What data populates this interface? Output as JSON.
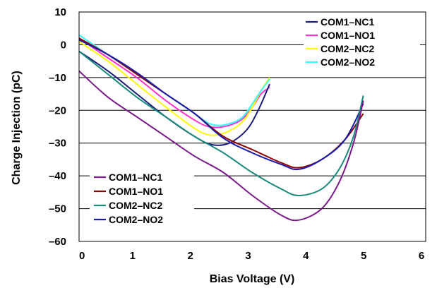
{
  "chart_data": {
    "type": "line",
    "title": "",
    "xlabel": "Bias Voltage (V)",
    "ylabel": "Charge Injection (pC)",
    "xlim": [
      0,
      6
    ],
    "ylim": [
      -60,
      10
    ],
    "x_ticks": [
      "0",
      "1",
      "2",
      "3",
      "4",
      "5",
      "6"
    ],
    "y_ticks": [
      "10",
      "0",
      "–10",
      "–20",
      "–30",
      "–40",
      "–50",
      "–60"
    ],
    "grid": "horizontal",
    "legends": [
      {
        "placement": "top-right",
        "entries": [
          {
            "name": "COM1–NC1",
            "color": "#1a1a7a"
          },
          {
            "name": "COM1–NO1",
            "color": "#ff33cc"
          },
          {
            "name": "COM2–NC2",
            "color": "#ffff00"
          },
          {
            "name": "COM2–NO2",
            "color": "#33ffff"
          }
        ]
      },
      {
        "placement": "bottom-left",
        "entries": [
          {
            "name": "COM1–NC1",
            "color": "#7a1a8a"
          },
          {
            "name": "COM1–NO1",
            "color": "#8b0000"
          },
          {
            "name": "COM2–NC2",
            "color": "#1a8a7a"
          },
          {
            "name": "COM2–NO2",
            "color": "#1a1aaa"
          }
        ]
      }
    ],
    "series": [
      {
        "color": "#ff33cc",
        "x": [
          0,
          0.5,
          1,
          1.5,
          2,
          2.25,
          2.5,
          2.8,
          3.0,
          3.15,
          3.3
        ],
        "y": [
          2,
          -4,
          -10,
          -17,
          -23,
          -25,
          -25,
          -23,
          -19,
          -15,
          -13
        ]
      },
      {
        "color": "#ffff00",
        "x": [
          0,
          0.5,
          1,
          1.5,
          2,
          2.25,
          2.5,
          2.8,
          3.0,
          3.15,
          3.3
        ],
        "y": [
          1,
          -5,
          -12,
          -19,
          -25.5,
          -27.5,
          -27,
          -24,
          -19,
          -14,
          -10
        ]
      },
      {
        "color": "#33ffff",
        "x": [
          0,
          0.5,
          1,
          1.5,
          2,
          2.25,
          2.5,
          2.8,
          3.0,
          3.15,
          3.3
        ],
        "y": [
          3,
          -3,
          -9,
          -15,
          -21,
          -24,
          -24.5,
          -22.5,
          -18,
          -14,
          -10.5
        ]
      },
      {
        "color": "#1a1a7a",
        "x": [
          0,
          0.5,
          1,
          1.5,
          2,
          2.3,
          2.6,
          2.9,
          3.1,
          3.3
        ],
        "y": [
          -2,
          -8,
          -15,
          -22,
          -28,
          -30.5,
          -30,
          -26,
          -20,
          -12
        ]
      },
      {
        "color": "#8b0000",
        "x": [
          0,
          0.5,
          1,
          1.5,
          2,
          2.5,
          3,
          3.5,
          3.8,
          4.2,
          4.6,
          4.92
        ],
        "y": [
          2,
          -3,
          -9,
          -15,
          -21,
          -28,
          -32,
          -36,
          -37.5,
          -35,
          -29,
          -21
        ]
      },
      {
        "color": "#1a1aaa",
        "x": [
          0,
          0.5,
          1,
          1.5,
          2,
          2.5,
          3,
          3.5,
          3.8,
          4.2,
          4.6,
          4.92
        ],
        "y": [
          1.5,
          -3,
          -8.5,
          -15,
          -21,
          -28.5,
          -33,
          -36.5,
          -38,
          -35,
          -29,
          -18
        ]
      },
      {
        "color": "#1a8a7a",
        "x": [
          0,
          0.5,
          1,
          1.5,
          2,
          2.5,
          3,
          3.5,
          3.8,
          4.2,
          4.5,
          4.75,
          4.92
        ],
        "y": [
          -2,
          -9,
          -16,
          -22,
          -28,
          -33,
          -39,
          -44,
          -46,
          -44,
          -38,
          -28,
          -15.5
        ]
      },
      {
        "color": "#7a1a8a",
        "x": [
          0,
          0.5,
          1,
          1.5,
          2,
          2.5,
          3,
          3.5,
          3.8,
          4.2,
          4.5,
          4.75,
          4.92
        ],
        "y": [
          -8,
          -16,
          -22,
          -28,
          -34,
          -39,
          -46,
          -52,
          -53.5,
          -50,
          -42,
          -30,
          -17
        ]
      }
    ]
  }
}
